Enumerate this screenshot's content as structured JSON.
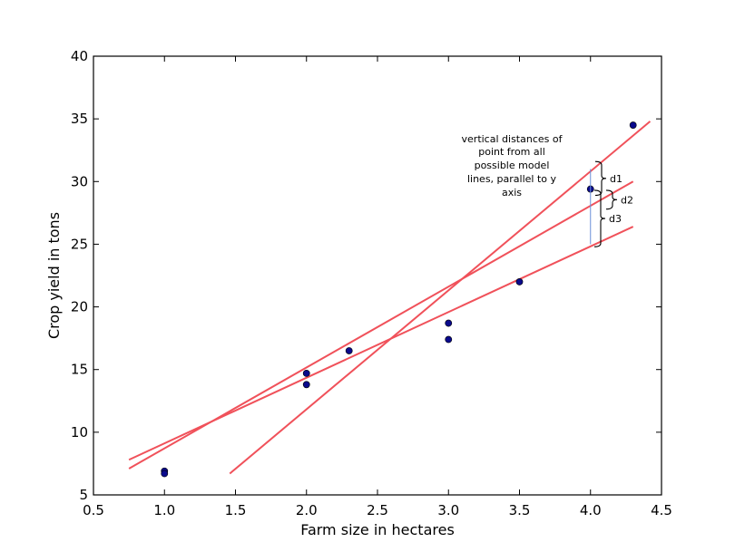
{
  "chart_data": {
    "type": "scatter",
    "title": "",
    "xlabel": "Farm size in hectares",
    "ylabel": "Crop yield in tons",
    "xlim": [
      0.5,
      4.5
    ],
    "ylim": [
      5,
      40
    ],
    "xticks": [
      "0.5",
      "1.0",
      "1.5",
      "2.0",
      "2.5",
      "3.0",
      "3.5",
      "4.0",
      "4.5"
    ],
    "yticks": [
      "5",
      "10",
      "15",
      "20",
      "25",
      "30",
      "35",
      "40"
    ],
    "grid": false,
    "points": [
      {
        "x": 1.0,
        "y": 6.9
      },
      {
        "x": 1.0,
        "y": 6.7
      },
      {
        "x": 2.0,
        "y": 14.7
      },
      {
        "x": 2.0,
        "y": 13.8
      },
      {
        "x": 2.3,
        "y": 16.5
      },
      {
        "x": 3.0,
        "y": 18.7
      },
      {
        "x": 3.0,
        "y": 17.4
      },
      {
        "x": 3.5,
        "y": 22.0
      },
      {
        "x": 4.0,
        "y": 29.4
      },
      {
        "x": 4.3,
        "y": 34.5
      }
    ],
    "point_color": "#0a0a8c",
    "line_color": "#f0515a",
    "lines": [
      {
        "x": [
          1.46,
          4.42
        ],
        "y": [
          6.7,
          34.8
        ]
      },
      {
        "x": [
          0.75,
          4.3
        ],
        "y": [
          7.1,
          30.0
        ]
      },
      {
        "x": [
          0.75,
          4.3
        ],
        "y": [
          7.8,
          26.4
        ]
      }
    ],
    "distance_line": {
      "x": 4.0,
      "y": [
        25.0,
        31.0
      ],
      "color": "#6a8fd8"
    },
    "annotation": {
      "lines": [
        "vertical distances of",
        "point from all",
        "possible model",
        "lines, parallel to y",
        "axis"
      ]
    },
    "braces": [
      {
        "label": "d1",
        "y_top": 31.6,
        "y_bottom": 28.9
      },
      {
        "label": "d2",
        "y_top": 29.3,
        "y_bottom": 27.8
      },
      {
        "label": "d3",
        "y_top": 29.3,
        "y_bottom": 24.8
      }
    ]
  }
}
